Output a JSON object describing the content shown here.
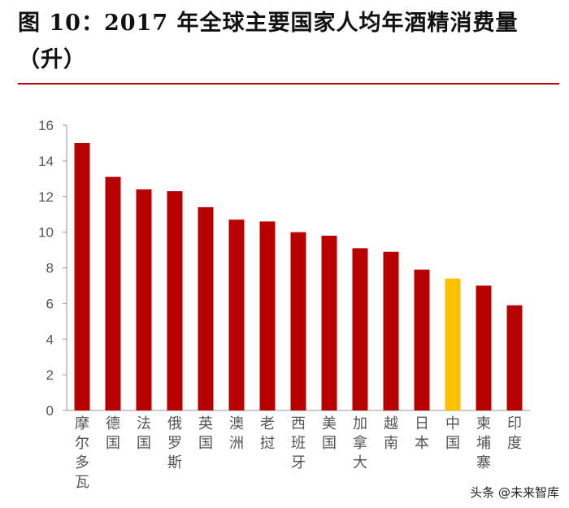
{
  "title": "图 10：2017 年全球主要国家人均年酒精消费量（升）",
  "watermark": "头条 @未来智库",
  "colors": {
    "bar": "#b80000",
    "highlight": "#ffc000",
    "rule": "#c00000"
  },
  "chart_data": {
    "type": "bar",
    "title": "图 10：2017 年全球主要国家人均年酒精消费量（升）",
    "xlabel": "",
    "ylabel": "",
    "ylim": [
      0,
      16
    ],
    "yticks": [
      0,
      2,
      4,
      6,
      8,
      10,
      12,
      14,
      16
    ],
    "grid": false,
    "categories": [
      "摩尔多瓦",
      "德国",
      "法国",
      "俄罗斯",
      "英国",
      "澳洲",
      "老挝",
      "西班牙",
      "美国",
      "加拿大",
      "越南",
      "日本",
      "中国",
      "柬埔寨",
      "印度"
    ],
    "values": [
      15.0,
      13.1,
      12.4,
      12.3,
      11.4,
      10.7,
      10.6,
      10.0,
      9.8,
      9.1,
      8.9,
      7.9,
      7.4,
      7.0,
      5.9
    ],
    "highlight": [
      "中国"
    ]
  }
}
